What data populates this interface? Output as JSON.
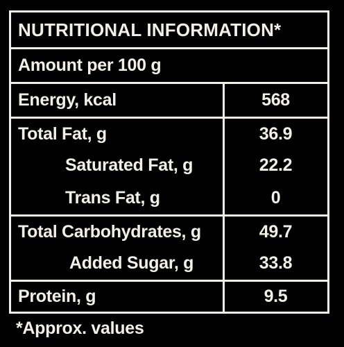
{
  "title": "NUTRITIONAL INFORMATION*",
  "serving": "Amount per 100 g",
  "rows": [
    {
      "label": "Energy, kcal",
      "value": "568"
    },
    {
      "label": "Total Fat, g",
      "value": "36.9"
    },
    {
      "label": "Saturated Fat, g",
      "value": "22.2"
    },
    {
      "label": "Trans Fat, g",
      "value": "0"
    },
    {
      "label": "Total Carbohydrates, g",
      "value": "49.7"
    },
    {
      "label": "Added Sugar, g",
      "value": "33.8"
    },
    {
      "label": "Protein, g",
      "value": "9.5"
    }
  ],
  "footnote": "*Approx. values"
}
